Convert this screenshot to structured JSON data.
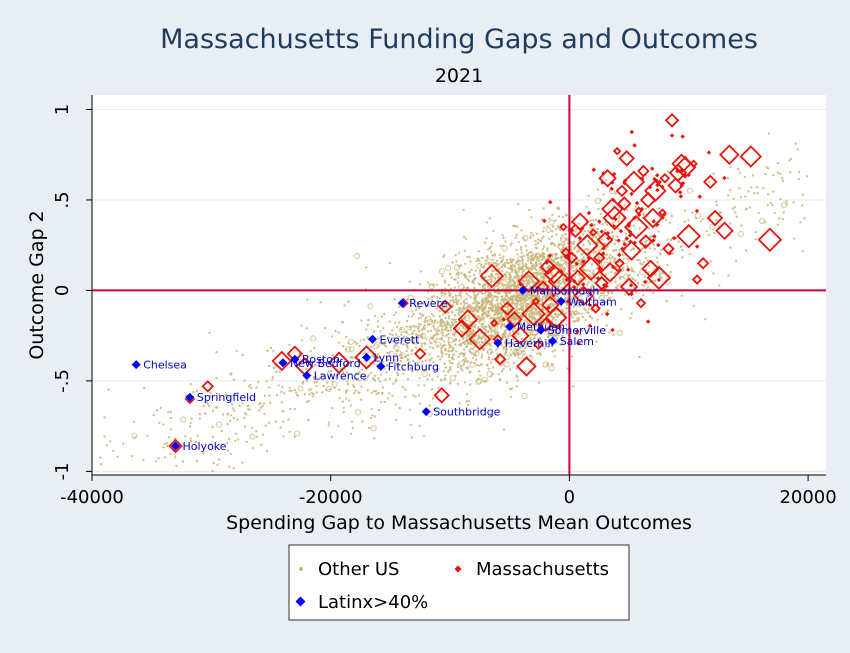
{
  "chart_data": {
    "type": "scatter",
    "title": "Massachusetts Funding Gaps and Outcomes",
    "subtitle": "2021",
    "xlabel": "Spending Gap to Massachusetts Mean Outcomes",
    "ylabel": "Outcome Gap 2",
    "xlim": [
      -40000,
      21500
    ],
    "ylim": [
      -1.02,
      1.08
    ],
    "x_ticks": [
      {
        "value": -40000,
        "label": "-40000"
      },
      {
        "value": -20000,
        "label": "-20000"
      },
      {
        "value": 0,
        "label": "0"
      },
      {
        "value": 20000,
        "label": "20000"
      }
    ],
    "y_ticks": [
      {
        "value": 1,
        "label": "1"
      },
      {
        "value": 0.5,
        "label": ".5"
      },
      {
        "value": 0,
        "label": "0"
      },
      {
        "value": -0.5,
        "label": "-.5"
      },
      {
        "value": -1,
        "label": "-1"
      }
    ],
    "grid": true,
    "reference_lines": {
      "x": 0,
      "y": 0,
      "color": "#cc0033"
    },
    "legend": {
      "placement": "bottom",
      "entries": [
        "Other US",
        "Massachusetts",
        "Latinx>40%"
      ]
    },
    "colors": {
      "other_us": "#c8b67a",
      "massachusetts": "#e8140c",
      "latinx": "#0000ff",
      "reference": "#cc0033",
      "title": "#1f3b5e",
      "labels": "#0000cc"
    },
    "series": [
      {
        "name": "Latinx>40%",
        "points": [
          {
            "label": "Chelsea",
            "x": -36300,
            "y": -0.41
          },
          {
            "label": "Springfield",
            "x": -31800,
            "y": -0.59
          },
          {
            "label": "Holyoke",
            "x": -33000,
            "y": -0.86
          },
          {
            "label": "Boston",
            "x": -23000,
            "y": -0.38
          },
          {
            "label": "New Bedford",
            "x": -24000,
            "y": -0.4
          },
          {
            "label": "Lawrence",
            "x": -22000,
            "y": -0.47
          },
          {
            "label": "Lynn",
            "x": -17000,
            "y": -0.37
          },
          {
            "label": "Fitchburg",
            "x": -15800,
            "y": -0.42
          },
          {
            "label": "Everett",
            "x": -16500,
            "y": -0.27
          },
          {
            "label": "Revere",
            "x": -14000,
            "y": -0.07
          },
          {
            "label": "Southbridge",
            "x": -12000,
            "y": -0.67
          },
          {
            "label": "Marlborough",
            "x": -3900,
            "y": 0.0
          },
          {
            "label": "Waltham",
            "x": -700,
            "y": -0.06
          },
          {
            "label": "Methuen",
            "x": -5000,
            "y": -0.2
          },
          {
            "label": "Somerville",
            "x": -2400,
            "y": -0.22
          },
          {
            "label": "Haverhill",
            "x": -6000,
            "y": -0.29
          },
          {
            "label": "Salem",
            "x": -1400,
            "y": -0.28
          }
        ]
      },
      {
        "name": "Massachusetts",
        "points": [
          {
            "x": -36300,
            "y": -0.41
          },
          {
            "x": -31800,
            "y": -0.6
          },
          {
            "x": -30300,
            "y": -0.53
          },
          {
            "x": -33000,
            "y": -0.86
          },
          {
            "x": -23000,
            "y": -0.35
          },
          {
            "x": -22200,
            "y": -0.42
          },
          {
            "x": -24100,
            "y": -0.39
          },
          {
            "x": -19300,
            "y": -0.4
          },
          {
            "x": -17000,
            "y": -0.37
          },
          {
            "x": -16500,
            "y": -0.27
          },
          {
            "x": -13900,
            "y": -0.07
          },
          {
            "x": -12500,
            "y": -0.35
          },
          {
            "x": -10400,
            "y": -0.09
          },
          {
            "x": -10700,
            "y": -0.58
          },
          {
            "x": -9000,
            "y": -0.21
          },
          {
            "x": -8500,
            "y": -0.16
          },
          {
            "x": -7500,
            "y": -0.27
          },
          {
            "x": -6500,
            "y": 0.08
          },
          {
            "x": -6300,
            "y": -0.18
          },
          {
            "x": -6000,
            "y": -0.27
          },
          {
            "x": -5800,
            "y": -0.38
          },
          {
            "x": -5200,
            "y": -0.1
          },
          {
            "x": -4600,
            "y": -0.16
          },
          {
            "x": -4100,
            "y": -0.25
          },
          {
            "x": -3600,
            "y": -0.42
          },
          {
            "x": -3400,
            "y": 0.05
          },
          {
            "x": -3000,
            "y": -0.13
          },
          {
            "x": -2800,
            "y": -0.06
          },
          {
            "x": -2600,
            "y": -0.3
          },
          {
            "x": -2200,
            "y": 0.02
          },
          {
            "x": -2000,
            "y": -0.19
          },
          {
            "x": -1800,
            "y": 0.13
          },
          {
            "x": -1600,
            "y": -0.08
          },
          {
            "x": -1300,
            "y": 0.09
          },
          {
            "x": -1100,
            "y": -0.15
          },
          {
            "x": -800,
            "y": 0.05
          },
          {
            "x": -500,
            "y": 0.35
          },
          {
            "x": -300,
            "y": 0.21
          },
          {
            "x": 200,
            "y": 0.18
          },
          {
            "x": 500,
            "y": 0.33
          },
          {
            "x": 700,
            "y": 0.07
          },
          {
            "x": 900,
            "y": 0.38
          },
          {
            "x": 1200,
            "y": -0.03
          },
          {
            "x": 1500,
            "y": 0.25
          },
          {
            "x": 1800,
            "y": 0.12
          },
          {
            "x": 2000,
            "y": 0.32
          },
          {
            "x": 2200,
            "y": -0.1
          },
          {
            "x": 2500,
            "y": 0.18
          },
          {
            "x": 2700,
            "y": 0.04
          },
          {
            "x": 3000,
            "y": 0.28
          },
          {
            "x": 3200,
            "y": 0.62
          },
          {
            "x": 3400,
            "y": 0.1
          },
          {
            "x": 3600,
            "y": 0.45
          },
          {
            "x": 3800,
            "y": 0.4
          },
          {
            "x": 4000,
            "y": 0.77
          },
          {
            "x": 4200,
            "y": 0.15
          },
          {
            "x": 4400,
            "y": 0.55
          },
          {
            "x": 4600,
            "y": 0.48
          },
          {
            "x": 4800,
            "y": 0.73
          },
          {
            "x": 5000,
            "y": 0.02
          },
          {
            "x": 5200,
            "y": 0.22
          },
          {
            "x": 5400,
            "y": 0.6
          },
          {
            "x": 5600,
            "y": 0.35
          },
          {
            "x": 5800,
            "y": 0.44
          },
          {
            "x": 6000,
            "y": -0.07
          },
          {
            "x": 6200,
            "y": 0.66
          },
          {
            "x": 6400,
            "y": 0.27
          },
          {
            "x": 6600,
            "y": 0.5
          },
          {
            "x": 6800,
            "y": 0.12
          },
          {
            "x": 7000,
            "y": 0.4
          },
          {
            "x": 7200,
            "y": 0.55
          },
          {
            "x": 7500,
            "y": 0.07
          },
          {
            "x": 7800,
            "y": 0.43
          },
          {
            "x": 8000,
            "y": 0.62
          },
          {
            "x": 8300,
            "y": 0.23
          },
          {
            "x": 8600,
            "y": 0.94
          },
          {
            "x": 8900,
            "y": 0.58
          },
          {
            "x": 9100,
            "y": 0.65
          },
          {
            "x": 9400,
            "y": 0.7
          },
          {
            "x": 9700,
            "y": 0.68
          },
          {
            "x": 10000,
            "y": 0.3
          },
          {
            "x": 10400,
            "y": 0.7
          },
          {
            "x": 10700,
            "y": 0.06
          },
          {
            "x": 11200,
            "y": 0.15
          },
          {
            "x": 11800,
            "y": 0.6
          },
          {
            "x": 12200,
            "y": 0.4
          },
          {
            "x": 13000,
            "y": 0.33
          },
          {
            "x": 13400,
            "y": 0.75
          },
          {
            "x": 15200,
            "y": 0.74
          },
          {
            "x": 16800,
            "y": 0.28
          }
        ]
      }
    ]
  }
}
